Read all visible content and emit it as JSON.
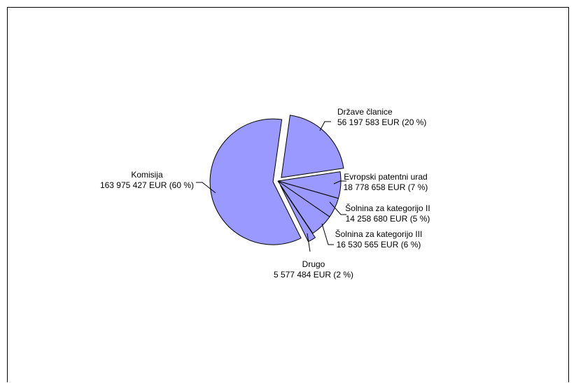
{
  "chart_data": {
    "type": "pie",
    "title": "",
    "slice_color": "#9999ff",
    "outline_color": "#000000",
    "slices": [
      {
        "label": "Države članice",
        "value": 56197583,
        "value_text": "56 197 583 EUR (20 %)",
        "percent": 20,
        "exploded": true
      },
      {
        "label": "Evropski patentni urad",
        "value": 18778658,
        "value_text": "18 778 658 EUR (7 %)",
        "percent": 7,
        "exploded": false
      },
      {
        "label": "Šolnina za kategorijo II",
        "value": 14258680,
        "value_text": "14 258 680 EUR (5 %)",
        "percent": 5,
        "exploded": false
      },
      {
        "label": "Šolnina za kategorijo III",
        "value": 16530565,
        "value_text": "16 530 565 EUR (6 %)",
        "percent": 6,
        "exploded": false
      },
      {
        "label": "Drugo",
        "value": 5577484,
        "value_text": "5 577 484 EUR (2 %)",
        "percent": 2,
        "exploded": true
      },
      {
        "label": "Komisija",
        "value": 163975427,
        "value_text": "163 975 427 EUR (60 %)",
        "percent": 60,
        "exploded": true
      }
    ]
  }
}
